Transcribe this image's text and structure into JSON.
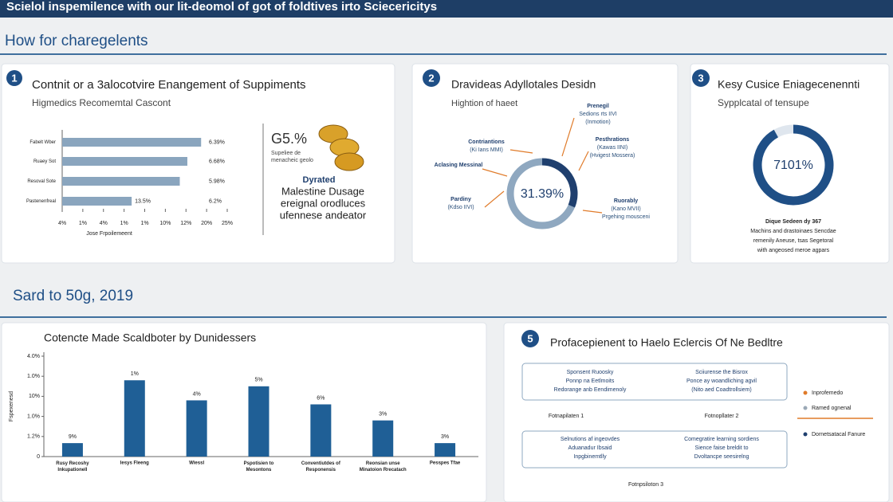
{
  "header": {
    "banner": "Scielol inspemilence with our lit-deomol of got of foldtives irto Sciecericitys",
    "section1": "How for charegelents",
    "section2": "Sard to 50g, 2019"
  },
  "cards": [
    {
      "badge": "1",
      "title": "Contnit or a 3alocotvire Enangement of Suppiments",
      "subtitle": "Higmedics Recomemtal Cascont",
      "side": {
        "big": "G5.%",
        "lines": [
          "Supeliee de",
          "menacheic geolo"
        ],
        "heading": "Dyrated",
        "body": [
          "Malestine Dusage",
          "ereignal orodluces",
          "ufennese andeator"
        ]
      }
    },
    {
      "badge": "2",
      "title": "Dravideas Adyllotales Desidn",
      "subtitle": "Hightion of haeet",
      "callouts": [
        [
          "Prenegil",
          "Sedions rts IIVI",
          "(Inmotion)"
        ],
        [
          "Contriantions",
          "(Ki Ians MMI)"
        ],
        [
          "Aclasing Messinal"
        ],
        [
          "Pesthrations",
          "(Kawas IINI)",
          "(Hvigest Mossera)"
        ],
        [
          "Pardiny",
          "(Kdso IIVI)"
        ],
        [
          "Ruorably",
          "(Kano MVII)",
          "Prgehing mousceni"
        ]
      ]
    },
    {
      "badge": "3",
      "title": "Kesy Cusice Eniagecenennti",
      "subtitle": "Sypplcatal of tensupe",
      "caption": "Dique Sedeen dy 367",
      "body": [
        "Machins and drastoinaes Sencdae",
        "remenily Aneuse, tsas Segetoral",
        "with angeosed meroe agpars"
      ]
    },
    {
      "title": "Cotencte Made Scaldboter by Dunidessers"
    },
    {
      "badge": "5",
      "title": "Profacepienent to Haelo Eclercis Of Ne Bedltre",
      "boxes": [
        [
          [
            "Sponsent Ruoosky",
            "Ponnp na Eetlmoits",
            "Redorange anb Eendimenoly"
          ],
          [
            "Sciiurense the Bisrox",
            "Ponce ay woandliching agvil",
            "(Nito aed Coadtrollsiem)"
          ]
        ],
        [
          [
            "Selnutions af ingeovdes",
            "Aduanadur Ibsaid",
            "Inpgbinemtlly"
          ],
          [
            "Comegratire learning sordiens",
            "Sience faise breldit to",
            "Dvoltancpe seesirelng"
          ]
        ]
      ],
      "captions": [
        "Fotnapilaten 1",
        "Fotnopllater 2",
        "Fotnpsiloton 3"
      ],
      "legend": [
        {
          "label": "Inprofemedo",
          "color": "#e07b2a"
        },
        {
          "label": "Ramed ognenal",
          "color": "#9aa8b6"
        },
        {
          "label": "Dornetsatacal Fanure",
          "color": "#1f3f6e"
        }
      ]
    }
  ],
  "chart_data": [
    {
      "type": "hbar",
      "categories": [
        "Fabelt Wber",
        "Ruaey Sot",
        "Resoval Sote",
        "Pastenenfreal"
      ],
      "values": [
        20.2,
        18.2,
        17.1,
        10.1
      ],
      "color": "#8aa5be",
      "xlim": [
        0,
        24
      ],
      "xticks": [
        {
          "value": 0,
          "label": "4%"
        },
        {
          "value": 3,
          "label": "1%"
        },
        {
          "value": 6,
          "label": "4%"
        },
        {
          "value": 9,
          "label": "1%"
        },
        {
          "value": 12,
          "label": "1%"
        },
        {
          "value": 15,
          "label": "10%"
        },
        {
          "value": 18,
          "label": "12%"
        },
        {
          "value": 21,
          "label": "20%"
        },
        {
          "value": 24,
          "label": "25%"
        }
      ],
      "xlabel": "Jose Frpoilemeent",
      "annotations": [
        "6.39%",
        "6.68%",
        "5.98%",
        "6.2%"
      ],
      "bar_note": "13.5%"
    },
    {
      "type": "donut",
      "values": [
        31.39
      ],
      "value_labels": [
        "31.39%"
      ],
      "colors": [
        "#1f3f6e",
        "#8fa8c0"
      ]
    },
    {
      "type": "donut",
      "values": [
        92
      ],
      "center_text": "7101%",
      "colors": [
        "#1f4f86",
        "#dfe6ee"
      ]
    },
    {
      "type": "vbar",
      "categories": [
        "Rusy Recoshy Inkupationell",
        "Iesys Fleeng",
        "Wiessl",
        "Pspotisien to Mesontons",
        "Conventiutdes of Responensis",
        "Reonsian unse Minatoion Rrecatach",
        "Pesspes Tfae"
      ],
      "values": [
        0.67,
        3.8,
        2.8,
        3.5,
        2.6,
        1.8,
        0.67
      ],
      "annotations": [
        "9%",
        "1%",
        "4%",
        "5%",
        "6%",
        "3%",
        "3%"
      ],
      "color": "#1f5f96",
      "ylim": [
        0,
        5
      ],
      "yticks": [
        0,
        {
          "value": 1,
          "label": "1.2%"
        },
        {
          "value": 2,
          "label": "1.0%"
        },
        {
          "value": 3,
          "label": "10%"
        },
        {
          "value": 4,
          "label": "1.0%"
        },
        {
          "value": 5,
          "label": "4.0%"
        }
      ],
      "ylabel": "Fspexenesd"
    }
  ]
}
